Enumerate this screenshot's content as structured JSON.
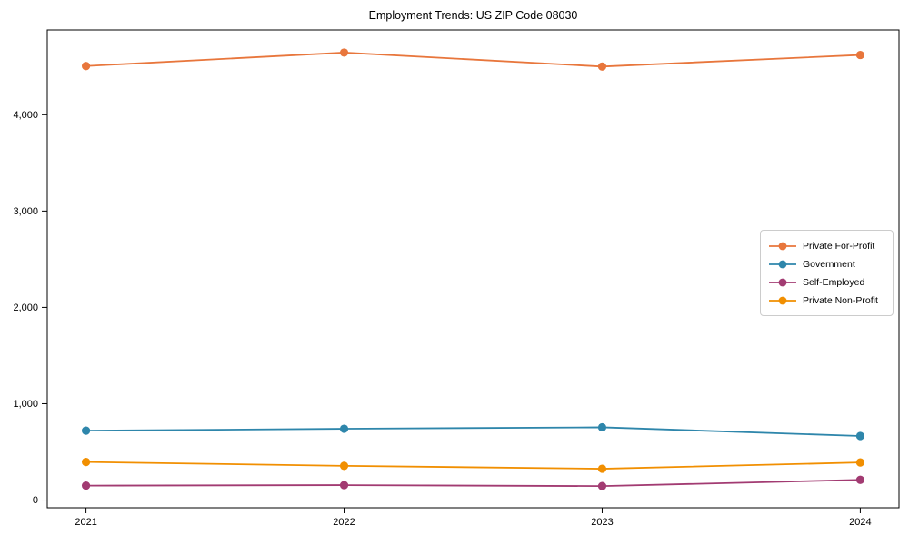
{
  "title": "Employment Trends: US ZIP Code 08030",
  "chart_data": {
    "type": "line",
    "title": "Employment Trends: US ZIP Code 08030",
    "x": [
      "2021",
      "2022",
      "2023",
      "2024"
    ],
    "series": [
      {
        "name": "Private For-Profit",
        "color": "#E8763C",
        "values": [
          4505,
          4645,
          4500,
          4620
        ]
      },
      {
        "name": "Government",
        "color": "#2E86AB",
        "values": [
          720,
          740,
          755,
          665
        ]
      },
      {
        "name": "Self-Employed",
        "color": "#A23B72",
        "values": [
          150,
          155,
          145,
          210
        ]
      },
      {
        "name": "Private Non-Profit",
        "color": "#F18F01",
        "values": [
          395,
          355,
          325,
          390
        ]
      }
    ],
    "yticks": [
      0,
      1000,
      2000,
      3000,
      4000
    ],
    "ytick_labels": [
      "0",
      "1,000",
      "2,000",
      "3,000",
      "4,000"
    ],
    "ylim": [
      -80,
      4880
    ],
    "xlabel": "",
    "ylabel": "",
    "grid": false,
    "legend_position": "center-right",
    "marker": "circle",
    "axis_color": "#000000"
  }
}
